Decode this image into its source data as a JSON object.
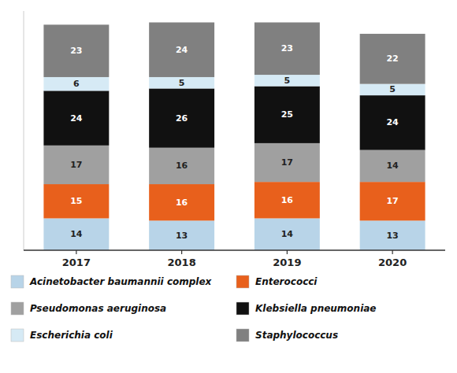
{
  "chart_data": {
    "type": "bar",
    "stacked": true,
    "categories": [
      "2017",
      "2018",
      "2019",
      "2020"
    ],
    "series": [
      {
        "name": "Acinetobacter baumannii complex",
        "color": "#b8d4e8",
        "values": [
          14,
          13,
          14,
          13
        ]
      },
      {
        "name": "Enterococci",
        "color": "#e8601c",
        "values": [
          15,
          16,
          16,
          17
        ]
      },
      {
        "name": "Pseudomonas aeruginosa",
        "color": "#a0a0a0",
        "values": [
          17,
          16,
          17,
          14
        ]
      },
      {
        "name": "Klebsiella pneumoniae",
        "color": "#111111",
        "values": [
          24,
          26,
          25,
          24
        ]
      },
      {
        "name": "Escherichia coli",
        "color": "#d6eaf5",
        "values": [
          6,
          5,
          5,
          5
        ]
      },
      {
        "name": "Staphylococcus",
        "color": "#808080",
        "values": [
          23,
          24,
          23,
          22
        ]
      }
    ],
    "ylim": [
      0,
      105
    ],
    "data_labels": true,
    "tick_labels": "x",
    "grid": false,
    "legend": "bottom"
  }
}
